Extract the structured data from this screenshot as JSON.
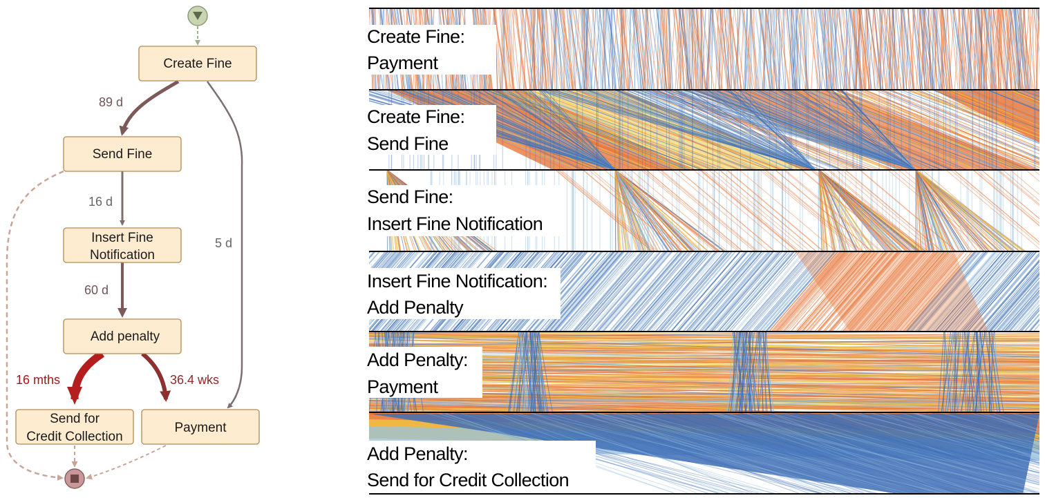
{
  "process_map": {
    "nodes": [
      {
        "id": "create-fine",
        "label": "Create Fine"
      },
      {
        "id": "send-fine",
        "label": "Send Fine"
      },
      {
        "id": "insert-fine-notification",
        "lines": [
          "Insert Fine",
          "Notification"
        ]
      },
      {
        "id": "add-penalty",
        "label": "Add penalty"
      },
      {
        "id": "send-for-credit-collection",
        "lines": [
          "Send for",
          "Credit Collection"
        ]
      },
      {
        "id": "payment",
        "label": "Payment"
      }
    ],
    "edges": [
      {
        "id": "create-fine-to-send-fine",
        "label": "89 d"
      },
      {
        "id": "send-fine-to-insert-fine-notification",
        "label": "16 d"
      },
      {
        "id": "insert-fine-notification-to-add-penalty",
        "label": "60 d"
      },
      {
        "id": "create-fine-to-payment",
        "label": "5 d"
      },
      {
        "id": "add-penalty-to-send-for-credit-collection",
        "label": "16 mths"
      },
      {
        "id": "add-penalty-to-payment",
        "label": "36.4 wks"
      }
    ],
    "colors": {
      "node_fill": "#fdecd0",
      "node_stroke": "#b08a55",
      "edge_gray": "#7a7070",
      "edge_brown": "#7d5a5a",
      "edge_red": "#b41e1e",
      "edge_darkred": "#8c3030",
      "start_fill": "#c9d4b0",
      "end_fill": "#c89898"
    }
  },
  "performance_spectrum": {
    "segments": [
      {
        "id": "create-fine-payment",
        "lines": [
          "Create Fine:",
          "Payment"
        ]
      },
      {
        "id": "create-fine-send-fine",
        "lines": [
          "Create Fine:",
          "Send Fine"
        ]
      },
      {
        "id": "send-fine-insert-fine-notification",
        "lines": [
          "Send Fine:",
          "Insert Fine Notification"
        ]
      },
      {
        "id": "insert-fine-notification-add-penalty",
        "lines": [
          "Insert Fine Notification:",
          "Add Penalty"
        ]
      },
      {
        "id": "add-penalty-payment",
        "lines": [
          "Add Penalty:",
          "Payment"
        ]
      },
      {
        "id": "add-penalty-send-for-credit-collection",
        "lines": [
          "Add Penalty:",
          "Send for Credit Collection"
        ]
      }
    ],
    "colors": [
      "#e8773a",
      "#f0c640",
      "#8fbadc",
      "#3f6fb6"
    ]
  }
}
